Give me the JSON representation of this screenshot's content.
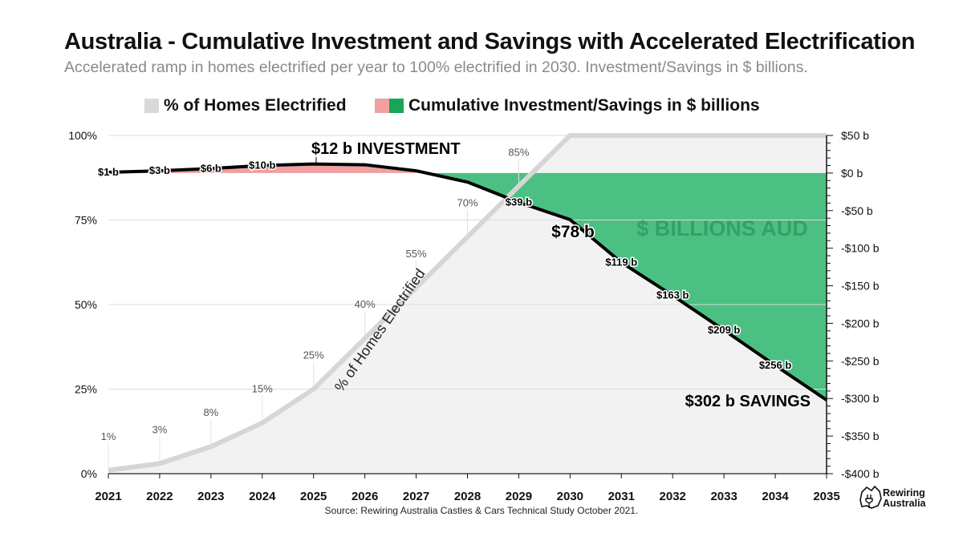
{
  "header": {
    "title": "Australia - Cumulative Investment and Savings with Accelerated Electrification",
    "subtitle": "Accelerated ramp in homes electrified per year to 100% electrified in 2030. Investment/Savings in $ billions."
  },
  "legend": {
    "homes_label": "% of Homes Electrified",
    "investment_label": "Cumulative Investment/Savings in $ billions"
  },
  "colors": {
    "homes_fill": "#f2f2f2",
    "homes_line": "#d6d6d6",
    "investment": "#f0a0a0",
    "savings": "#4cbf82",
    "cumulative_line": "#000000",
    "watermark": "#2e9e63"
  },
  "annotations": {
    "investment_peak": "$12 b INVESTMENT",
    "savings_end": "$302 b SAVINGS",
    "mid_label": "$78 b",
    "watermark": "$ BILLIONS AUD",
    "diagonal": "% of Homes Electrified"
  },
  "source": "Source: Rewiring Australia Castles & Cars Technical Study October 2021.",
  "logo": {
    "line1": "Rewiring",
    "line2": "Australia"
  },
  "chart_data": {
    "type": "line",
    "title": "Australia - Cumulative Investment and Savings with Accelerated Electrification",
    "x": [
      2021,
      2022,
      2023,
      2024,
      2025,
      2026,
      2027,
      2028,
      2029,
      2030,
      2031,
      2032,
      2033,
      2034,
      2035
    ],
    "xlim": [
      2021,
      2035
    ],
    "left_axis": {
      "ylim": [
        0,
        100
      ],
      "ticks": [
        "0%",
        "25%",
        "50%",
        "75%",
        "100%"
      ],
      "tick_values": [
        0,
        25,
        50,
        75,
        100
      ]
    },
    "right_axis": {
      "ylim": [
        -400,
        50
      ],
      "ticks": [
        "$50 b",
        "$0 b",
        "-$50 b",
        "-$100 b",
        "-$150 b",
        "-$200 b",
        "-$250 b",
        "-$300 b",
        "-$350 b",
        "-$400 b"
      ],
      "tick_values": [
        50,
        0,
        -50,
        -100,
        -150,
        -200,
        -250,
        -300,
        -350,
        -400
      ]
    },
    "series": [
      {
        "name": "% of Homes Electrified",
        "axis": "left",
        "values": [
          1,
          3,
          8,
          15,
          25,
          40,
          55,
          70,
          85,
          100,
          100,
          100,
          100,
          100,
          100
        ],
        "labels": [
          "1%",
          "3%",
          "8%",
          "15%",
          "25%",
          "40%",
          "55%",
          "70%",
          "85%",
          "",
          "",
          "",
          "",
          "",
          ""
        ]
      },
      {
        "name": "Cumulative Investment/Savings in $ billions",
        "axis": "right",
        "values": [
          1,
          3,
          6,
          10,
          12,
          11,
          3,
          -12,
          -39,
          -62,
          -119,
          -163,
          -209,
          -256,
          -302
        ],
        "labels": [
          "$1 b",
          "$3 b",
          "$6 b",
          "$10 b",
          "",
          "",
          "",
          "",
          "$39 b",
          "",
          "$119 b",
          "$163 b",
          "$209 b",
          "$256 b",
          ""
        ]
      }
    ],
    "grid": true
  }
}
